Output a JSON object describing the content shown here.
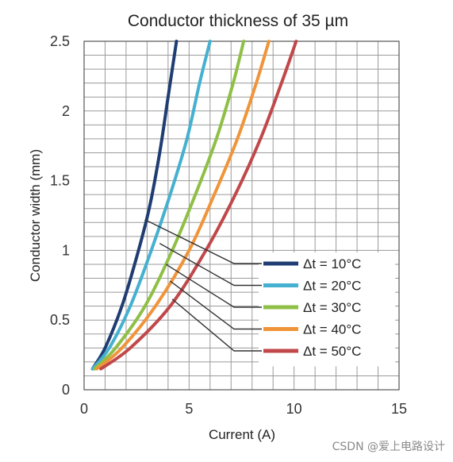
{
  "chart_data": {
    "type": "line",
    "title": "Conductor thickness of 35 µm",
    "xlabel": "Current  (A)",
    "ylabel": "Conductor width (mm)",
    "xlim": [
      0,
      15
    ],
    "ylim": [
      0,
      2.5
    ],
    "x_ticks": [
      "0",
      "5",
      "10",
      "15"
    ],
    "y_ticks": [
      "0",
      "0.5",
      "1",
      "1.5",
      "2",
      "2.5"
    ],
    "grid": true,
    "legend_position": "right-lower",
    "series": [
      {
        "name": "Δt = 10°C",
        "color": "#1f3d73",
        "points": [
          [
            0.4,
            0.15
          ],
          [
            1,
            0.3
          ],
          [
            1.8,
            0.6
          ],
          [
            2.5,
            0.95
          ],
          [
            3.1,
            1.3
          ],
          [
            3.6,
            1.7
          ],
          [
            4.0,
            2.1
          ],
          [
            4.4,
            2.5
          ]
        ]
      },
      {
        "name": "Δt = 20°C",
        "color": "#45b0cf",
        "points": [
          [
            0.4,
            0.15
          ],
          [
            1.2,
            0.3
          ],
          [
            2.2,
            0.6
          ],
          [
            3.2,
            1.0
          ],
          [
            4.1,
            1.4
          ],
          [
            4.9,
            1.8
          ],
          [
            5.5,
            2.2
          ],
          [
            6.0,
            2.5
          ]
        ]
      },
      {
        "name": "Δt = 30°C",
        "color": "#8fbf45",
        "points": [
          [
            0.5,
            0.15
          ],
          [
            1.5,
            0.3
          ],
          [
            2.9,
            0.6
          ],
          [
            4.2,
            1.0
          ],
          [
            5.3,
            1.4
          ],
          [
            6.3,
            1.8
          ],
          [
            7.1,
            2.2
          ],
          [
            7.6,
            2.5
          ]
        ]
      },
      {
        "name": "Δt = 40°C",
        "color": "#f0943a",
        "points": [
          [
            0.6,
            0.15
          ],
          [
            1.8,
            0.3
          ],
          [
            3.4,
            0.6
          ],
          [
            5.0,
            1.0
          ],
          [
            6.2,
            1.4
          ],
          [
            7.3,
            1.8
          ],
          [
            8.2,
            2.2
          ],
          [
            8.8,
            2.5
          ]
        ]
      },
      {
        "name": "Δt = 50°C",
        "color": "#c0484a",
        "points": [
          [
            0.8,
            0.15
          ],
          [
            2.2,
            0.3
          ],
          [
            4.1,
            0.6
          ],
          [
            5.8,
            1.0
          ],
          [
            7.2,
            1.4
          ],
          [
            8.4,
            1.8
          ],
          [
            9.4,
            2.2
          ],
          [
            10.1,
            2.5
          ]
        ]
      }
    ],
    "leader_starts": [
      [
        2.9,
        1.22
      ],
      [
        3.6,
        1.05
      ],
      [
        3.9,
        0.9
      ],
      [
        4.1,
        0.78
      ],
      [
        4.2,
        0.65
      ]
    ]
  },
  "watermark": "CSDN @爱上电路设计"
}
